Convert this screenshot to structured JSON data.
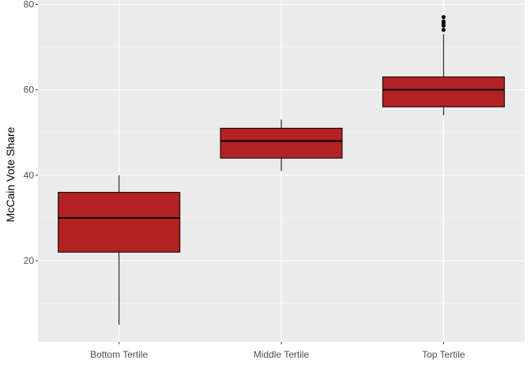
{
  "chart_data": {
    "type": "boxplot",
    "title": "",
    "xlabel": "",
    "ylabel": "McCain Vote Share",
    "ylim": [
      1,
      81
    ],
    "yticks": [
      20,
      40,
      60,
      80
    ],
    "y_minor_ticks": [
      10,
      30,
      50,
      70
    ],
    "grid": true,
    "legend": "none",
    "categories": [
      "Bottom Tertile",
      "Middle Tertile",
      "Top Tertile"
    ],
    "boxes": [
      {
        "category": "Bottom Tertile",
        "lower_whisker": 5,
        "q1": 22,
        "median": 30,
        "q3": 36,
        "upper_whisker": 40,
        "outliers": []
      },
      {
        "category": "Middle Tertile",
        "lower_whisker": 41,
        "q1": 44,
        "median": 48,
        "q3": 51,
        "upper_whisker": 53,
        "outliers": []
      },
      {
        "category": "Top Tertile",
        "lower_whisker": 54,
        "q1": 56,
        "median": 60,
        "q3": 63,
        "upper_whisker": 73,
        "outliers": [
          74,
          75,
          75.5,
          76,
          77
        ]
      }
    ]
  },
  "colors": {
    "panel_background": "#ebebeb",
    "grid_major": "#ffffff",
    "grid_minor": "#f5f5f5",
    "box_fill": "#b22222",
    "box_outline": "#000000",
    "tick_text": "#4d4d4d"
  }
}
